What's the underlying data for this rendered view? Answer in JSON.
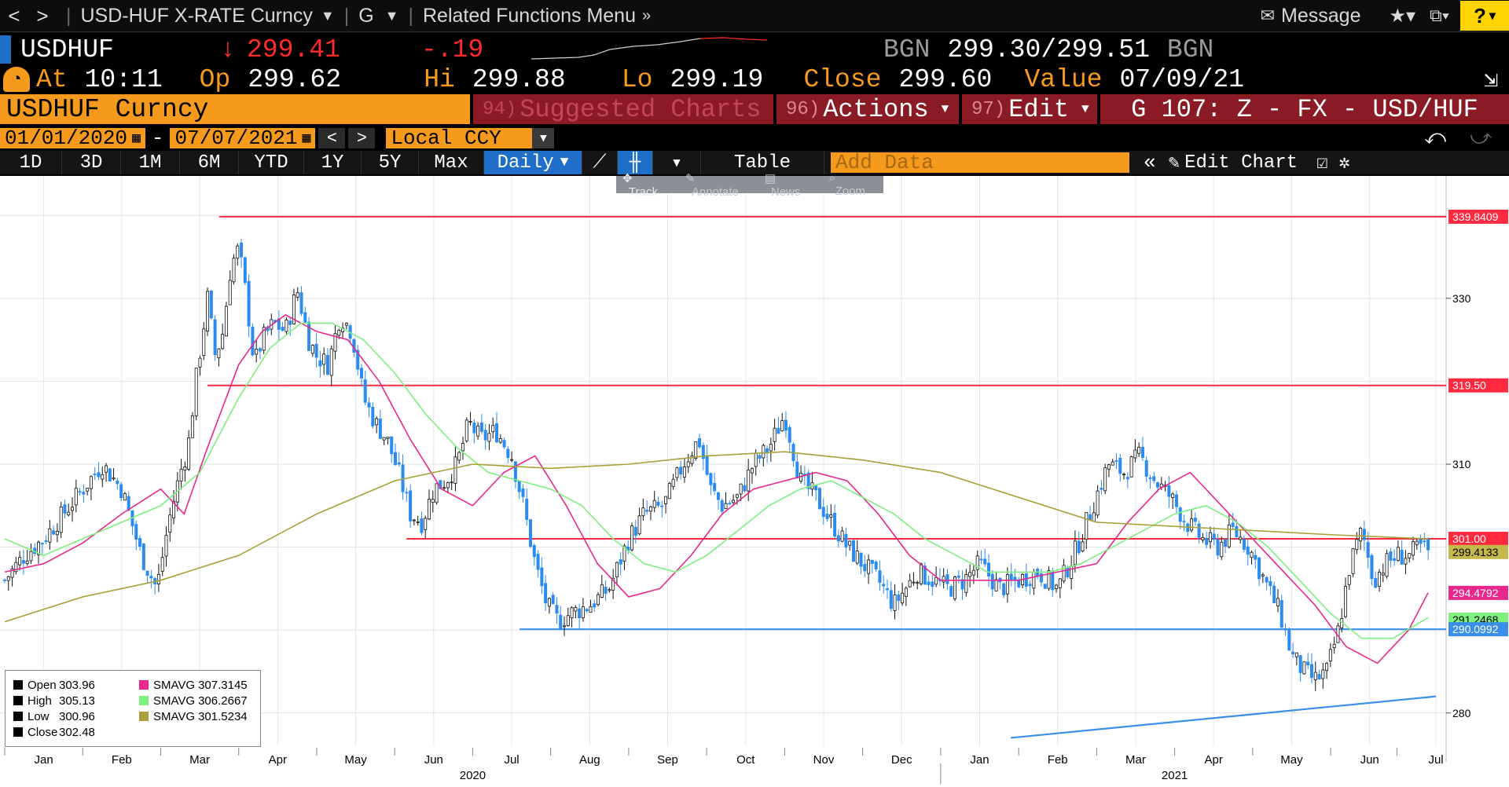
{
  "topbar": {
    "back_glyph": "<",
    "forward_glyph": ">",
    "security_title": "USD-HUF X-RATE Curncy",
    "g_label": "G",
    "related_menu": "Related Functions Menu",
    "message_label": "Message",
    "help_label": "?"
  },
  "quote": {
    "ticker": "USDHUF",
    "arrow": "↓",
    "last": "299.41",
    "change": "-.19",
    "bid_src": "BGN",
    "bid": "299.30",
    "slash": "/",
    "ask": "299.51",
    "ask_src": "BGN",
    "at_label": "At",
    "at_time": "10:11",
    "op_label": "Op",
    "open": "299.62",
    "hi_label": "Hi",
    "high": "299.88",
    "lo_label": "Lo",
    "low": "299.19",
    "close_label": "Close",
    "close": "299.60",
    "value_label": "Value",
    "value_date": "07/09/21"
  },
  "header": {
    "security_name": "USDHUF Curncy",
    "suggested_num": "94)",
    "suggested_label": "Suggested Charts",
    "actions_num": "96)",
    "actions_label": "Actions",
    "edit_num": "97)",
    "edit_label": "Edit",
    "g_template": "G 107: Z - FX - USD/HUF"
  },
  "daterow": {
    "start_date": "01/01/2020",
    "dash": "-",
    "end_date": "07/07/2021",
    "currency": "Local CCY"
  },
  "periods": [
    "1D",
    "3D",
    "1M",
    "6M",
    "YTD",
    "1Y",
    "5Y",
    "Max"
  ],
  "frequency": "Daily",
  "table_label": "Table",
  "add_data_placeholder": "Add Data",
  "edit_chart_label": "Edit Chart",
  "chart_tools": [
    "Track",
    "Annotate",
    "News",
    "Zoom"
  ],
  "colors": {
    "accent_orange": "#f59a1c",
    "bar_red": "#8a1a24",
    "candle_up": "#ffffff",
    "candle_down": "#2a8cf0",
    "sma_pink": "#e8288c",
    "sma_green": "#7ef07e",
    "sma_olive": "#a8a038",
    "hline_red": "#ff2a40",
    "hline_blue": "#3a90e8"
  },
  "legend": {
    "open_label": "Open",
    "open_value": "303.96",
    "high_label": "High",
    "high_value": "305.13",
    "low_label": "Low",
    "low_value": "300.96",
    "close_label": "Close",
    "close_value": "302.48",
    "sma1_label": "SMAVG",
    "sma1_value": "307.3145",
    "sma2_label": "SMAVG",
    "sma2_value": "306.2667",
    "sma3_label": "SMAVG",
    "sma3_value": "301.5234"
  },
  "chart_data": {
    "type": "line",
    "ylim": [
      276,
      344
    ],
    "y_ticks": [
      280,
      290,
      300,
      310,
      320,
      330,
      340
    ],
    "y_tick_labels": [
      "280",
      "",
      "",
      "310",
      "",
      "330",
      ""
    ],
    "months": [
      {
        "label": "Jan",
        "t": 0.5
      },
      {
        "label": "Feb",
        "t": 1.5
      },
      {
        "label": "Mar",
        "t": 2.5
      },
      {
        "label": "Apr",
        "t": 3.5
      },
      {
        "label": "May",
        "t": 4.5
      },
      {
        "label": "Jun",
        "t": 5.5
      },
      {
        "label": "Jul",
        "t": 6.5
      },
      {
        "label": "Aug",
        "t": 7.5
      },
      {
        "label": "Sep",
        "t": 8.5
      },
      {
        "label": "Oct",
        "t": 9.5
      },
      {
        "label": "Nov",
        "t": 10.5
      },
      {
        "label": "Dec",
        "t": 11.5
      },
      {
        "label": "Jan",
        "t": 12.5
      },
      {
        "label": "Feb",
        "t": 13.5
      },
      {
        "label": "Mar",
        "t": 14.5
      },
      {
        "label": "Apr",
        "t": 15.5
      },
      {
        "label": "May",
        "t": 16.5
      },
      {
        "label": "Jun",
        "t": 17.5
      },
      {
        "label": "Jul",
        "t": 18.35
      }
    ],
    "years": [
      {
        "label": "2020",
        "t": 6.0
      },
      {
        "label": "2021",
        "t": 15.0
      }
    ],
    "year_divider_t": 12.0,
    "xlim": [
      0,
      18.4
    ],
    "close_series": {
      "t": [
        0,
        0.25,
        0.5,
        0.75,
        1.0,
        1.25,
        1.5,
        1.75,
        1.95,
        2.1,
        2.25,
        2.35,
        2.45,
        2.6,
        2.7,
        2.8,
        2.9,
        3.0,
        3.1,
        3.2,
        3.3,
        3.45,
        3.6,
        3.75,
        3.9,
        4.0,
        4.15,
        4.3,
        4.45,
        4.6,
        4.75,
        4.9,
        5.05,
        5.2,
        5.35,
        5.5,
        5.65,
        5.8,
        5.95,
        6.1,
        6.3,
        6.5,
        6.65,
        6.8,
        6.95,
        7.1,
        7.25,
        7.5,
        7.75,
        8.0,
        8.2,
        8.45,
        8.7,
        8.9,
        9.05,
        9.2,
        9.4,
        9.6,
        9.8,
        10.0,
        10.2,
        10.4,
        10.6,
        10.8,
        11.0,
        11.2,
        11.4,
        11.55,
        11.7,
        11.9,
        12.1,
        12.3,
        12.5,
        12.75,
        13.0,
        13.25,
        13.5,
        13.75,
        13.95,
        14.15,
        14.35,
        14.55,
        14.75,
        14.95,
        15.15,
        15.35,
        15.55,
        15.75,
        15.95,
        16.15,
        16.35,
        16.5,
        16.65,
        16.8,
        16.95,
        17.1,
        17.25,
        17.4,
        17.55,
        17.7,
        17.85,
        18.0,
        18.15,
        18.25
      ],
      "close": [
        296,
        299,
        301,
        304,
        307,
        310,
        307,
        299,
        295,
        303,
        309,
        312,
        320,
        330,
        323,
        326,
        334,
        336,
        330,
        322,
        325,
        327,
        326,
        331,
        325,
        323,
        322,
        328,
        326,
        318,
        315,
        313,
        309,
        304,
        303,
        307,
        308,
        310,
        315,
        313,
        314,
        311,
        305,
        298,
        293,
        291,
        292,
        293,
        295,
        301,
        304,
        305,
        310,
        313,
        307,
        305,
        306,
        310,
        312,
        316,
        308,
        306,
        303,
        300,
        298,
        296,
        293,
        295,
        297,
        296,
        295,
        296,
        298,
        295,
        296,
        297,
        295,
        300,
        305,
        310,
        309,
        311,
        308,
        306,
        303,
        301,
        300,
        302,
        300,
        296,
        292,
        287,
        285,
        284,
        285,
        290,
        298,
        302,
        296,
        298,
        299,
        299,
        300,
        299.4
      ]
    },
    "series": [
      {
        "name": "SMAVG",
        "value": "307.3145",
        "color": "#e8288c",
        "t": [
          0,
          0.5,
          1.0,
          1.5,
          2.0,
          2.3,
          2.6,
          3.0,
          3.3,
          3.6,
          4.0,
          4.4,
          4.8,
          5.2,
          5.6,
          6.0,
          6.4,
          6.8,
          7.2,
          7.6,
          8.0,
          8.4,
          8.8,
          9.2,
          9.6,
          10.0,
          10.4,
          10.8,
          11.2,
          11.6,
          12.0,
          12.5,
          13.0,
          13.5,
          14.0,
          14.4,
          14.8,
          15.2,
          15.6,
          16.0,
          16.4,
          16.8,
          17.2,
          17.6,
          18.0,
          18.25
        ],
        "y": [
          297,
          298,
          300.5,
          304,
          307,
          304,
          312,
          322,
          326,
          328,
          326,
          325,
          320,
          313,
          307,
          305,
          309,
          311,
          305,
          298,
          294,
          295,
          299,
          304,
          307,
          308,
          309,
          308,
          304,
          299,
          296,
          296,
          296,
          297,
          298,
          303,
          307,
          309,
          305,
          301,
          297,
          293,
          288,
          286,
          290,
          294.5
        ]
      },
      {
        "name": "SMAVG",
        "value": "306.2667",
        "color": "#7ef07e",
        "t": [
          0,
          0.5,
          1.0,
          1.5,
          2.0,
          2.5,
          3.0,
          3.4,
          3.8,
          4.2,
          4.6,
          5.0,
          5.4,
          5.8,
          6.2,
          6.6,
          7.0,
          7.4,
          7.8,
          8.2,
          8.6,
          9.0,
          9.4,
          9.8,
          10.2,
          10.6,
          11.0,
          11.4,
          11.8,
          12.2,
          12.6,
          13.0,
          13.4,
          13.8,
          14.2,
          14.6,
          15.0,
          15.4,
          15.8,
          16.2,
          16.6,
          17.0,
          17.4,
          17.8,
          18.25
        ],
        "y": [
          301,
          299,
          301,
          303,
          305,
          309,
          318,
          324,
          327,
          327,
          325,
          321,
          316,
          312,
          309,
          308,
          307,
          305,
          301,
          298,
          297,
          299,
          302,
          305,
          307,
          308,
          306,
          304,
          301,
          299,
          297,
          297,
          297,
          298,
          300,
          302,
          304,
          305,
          303,
          300,
          296,
          292,
          289,
          289,
          291.5
        ]
      },
      {
        "name": "SMAVG",
        "value": "301.5234",
        "color": "#a8a038",
        "t": [
          0,
          1,
          2,
          3,
          4,
          5,
          6,
          7,
          8,
          9,
          10,
          11,
          12,
          13,
          14,
          15,
          16,
          17,
          18.25
        ],
        "y": [
          291,
          294,
          296,
          299,
          304,
          308,
          310,
          309.5,
          310,
          311,
          311.5,
          310.5,
          309,
          306,
          303,
          302.5,
          302,
          301.5,
          301
        ]
      }
    ],
    "hlines": [
      {
        "label": "339.8409",
        "value": 339.8409,
        "start_t": 2.75,
        "color": "#ff2a40"
      },
      {
        "label": "319.50",
        "value": 319.5,
        "start_t": 2.6,
        "color": "#ff2a40"
      },
      {
        "label": "301.00",
        "value": 301.0,
        "start_t": 5.15,
        "color": "#ff2a40"
      },
      {
        "label": "290.0992",
        "value": 290.0992,
        "start_t": 6.6,
        "color": "#3a90e8"
      }
    ],
    "trendline": {
      "t0": 12.9,
      "y0": 277,
      "t1": 18.35,
      "y1": 282,
      "color": "#3a90e8"
    },
    "right_labels": [
      {
        "label": "339.8409",
        "value": 339.8409,
        "bg": "#ff2a40",
        "fg": "#ffffff"
      },
      {
        "label": "330",
        "value": 330,
        "bg": "",
        "fg": "#000000"
      },
      {
        "label": "319.50",
        "value": 319.5,
        "bg": "#ff2a40",
        "fg": "#ffffff"
      },
      {
        "label": "310",
        "value": 310,
        "bg": "",
        "fg": "#000000"
      },
      {
        "label": "301.00",
        "value": 301.0,
        "bg": "#ff2a40",
        "fg": "#ffffff"
      },
      {
        "label": "299.4133",
        "value": 299.4133,
        "bg": "#c4b84a",
        "fg": "#000000"
      },
      {
        "label": "294.4792",
        "value": 294.4792,
        "bg": "#e8288c",
        "fg": "#ffffff"
      },
      {
        "label": "291.2468",
        "value": 291.2468,
        "bg": "#7ef07e",
        "fg": "#000000"
      },
      {
        "label": "290.0992",
        "value": 290.0992,
        "bg": "#3a90e8",
        "fg": "#ffffff"
      },
      {
        "label": "280",
        "value": 280,
        "bg": "",
        "fg": "#000000"
      }
    ]
  }
}
